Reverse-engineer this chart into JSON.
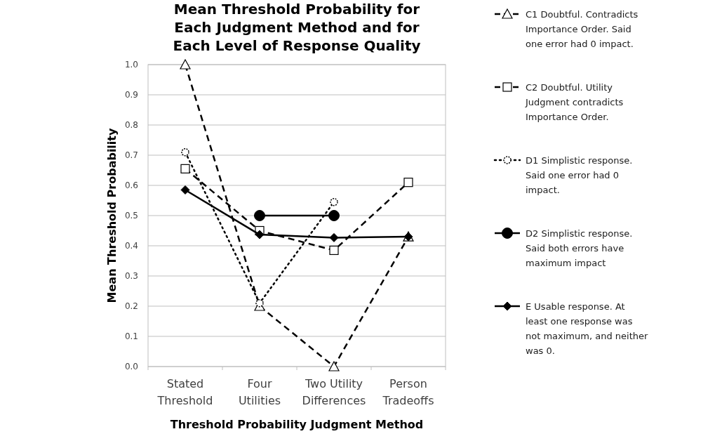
{
  "chart_data": {
    "type": "line",
    "title": "Mean Threshold Probability for Each Judgment Method and for Each Level of Response Quality",
    "xlabel": "Threshold Probability Judgment Method",
    "ylabel": "Mean Threshold Probability",
    "categories": [
      "Stated Threshold",
      "Four Utilities",
      "Two Utility Differences",
      "Person Tradeoffs"
    ],
    "series": [
      {
        "name": "C1 Doubtful. Contradicts Importance Order. Said one error had 0 impact.",
        "color": "#000000",
        "values": [
          1.0,
          0.2,
          0.0,
          0.43
        ],
        "marker": "triangle",
        "line_style": "dashed"
      },
      {
        "name": "C2 Doubtful. Utility Judgment contradicts Importance Order.",
        "color": "#000000",
        "values": [
          0.655,
          0.45,
          0.385,
          0.61
        ],
        "marker": "square",
        "line_style": "dashed"
      },
      {
        "name": "D1 Simplistic response. Said one error had 0 impact.",
        "color": "#000000",
        "values": [
          0.71,
          0.21,
          0.545,
          null
        ],
        "marker": "circle",
        "line_style": "dotted"
      },
      {
        "name": "D2 Simplistic response. Said both errors have maximum impact",
        "color": "#000000",
        "values": [
          null,
          0.5,
          0.5,
          null
        ],
        "marker": "circle",
        "line_style": "solid"
      },
      {
        "name": "E Usable response. At least one response was not maximum, and neither was 0.",
        "color": "#000000",
        "values": [
          0.585,
          0.437,
          0.427,
          0.43
        ],
        "marker": "diamond",
        "line_style": "solid"
      }
    ],
    "ylim": [
      0,
      1
    ],
    "yticks": [
      {
        "value": 0,
        "label": "0.0"
      },
      {
        "value": 0.1,
        "label": "0.1"
      },
      {
        "value": 0.2,
        "label": "0.2"
      },
      {
        "value": 0.3,
        "label": "0.3"
      },
      {
        "value": 0.4,
        "label": "0.4"
      },
      {
        "value": 0.5,
        "label": "0.5"
      },
      {
        "value": 0.6,
        "label": "0.6"
      },
      {
        "value": 0.7,
        "label": "0.7"
      },
      {
        "value": 0.8,
        "label": "0.8"
      },
      {
        "value": 0.9,
        "label": "0.9"
      },
      {
        "value": 1,
        "label": "1.0"
      }
    ],
    "grid": "y",
    "legend": "right"
  }
}
